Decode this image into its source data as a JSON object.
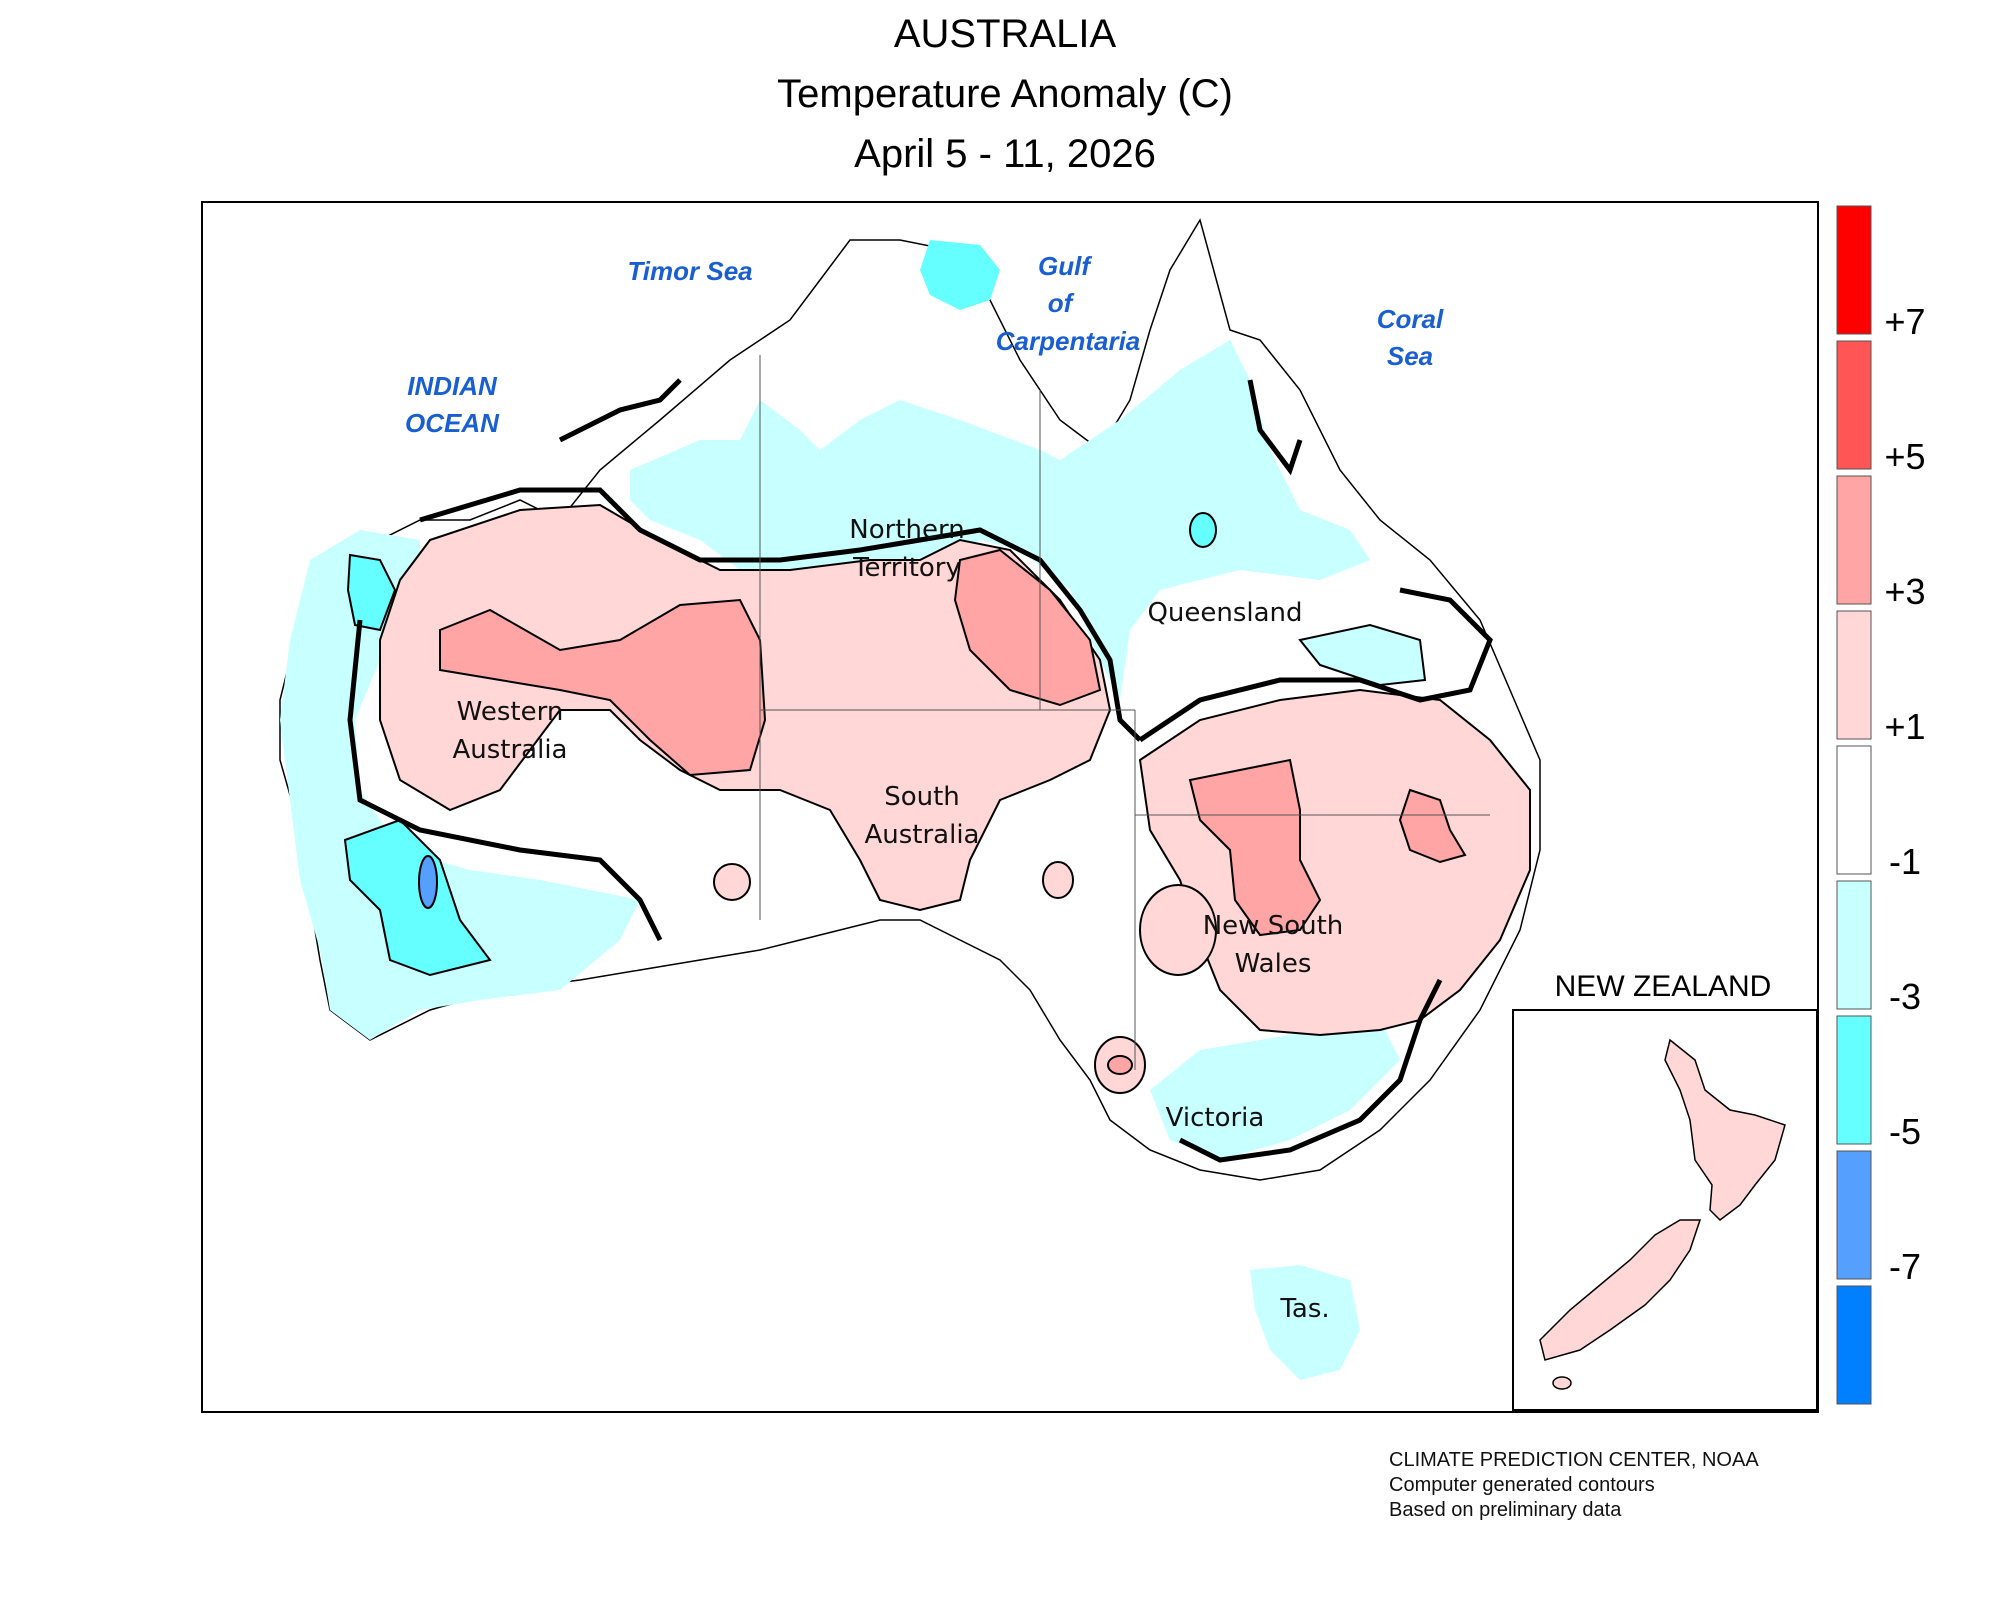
{
  "title": {
    "line1": "AUSTRALIA",
    "line2": "Temperature Anomaly (C)",
    "line3": "April 5 - 11, 2026"
  },
  "labels": {
    "sea": [
      "Timor Sea",
      "Gulf",
      "of",
      "Carpentaria",
      "Coral",
      "Sea",
      "INDIAN",
      "OCEAN"
    ],
    "states": [
      "Northern",
      "Territory",
      "Queensland",
      "Western",
      "Australia",
      "South",
      "Australia",
      "New South",
      "Wales",
      "Victoria",
      "Tas."
    ],
    "inset_title": "NEW ZEALAND"
  },
  "legend": {
    "unit": "C",
    "labels": [
      "+7",
      "+5",
      "+3",
      "+1",
      "-1",
      "-3",
      "-5",
      "-7"
    ],
    "colors": [
      "#ff0000",
      "#ff5555",
      "#ffa5a5",
      "#ffd7d7",
      "#ffffff",
      "#c8ffff",
      "#66ffff",
      "#55a0ff",
      "#0080ff"
    ]
  },
  "credits": {
    "line1": "CLIMATE PREDICTION CENTER, NOAA",
    "line2": "Computer generated contours",
    "line3": "Based on preliminary data"
  },
  "colors": {
    "sea_label": "#1a5fd1",
    "contour": "#000000",
    "land_neutral": "#ffffff"
  }
}
